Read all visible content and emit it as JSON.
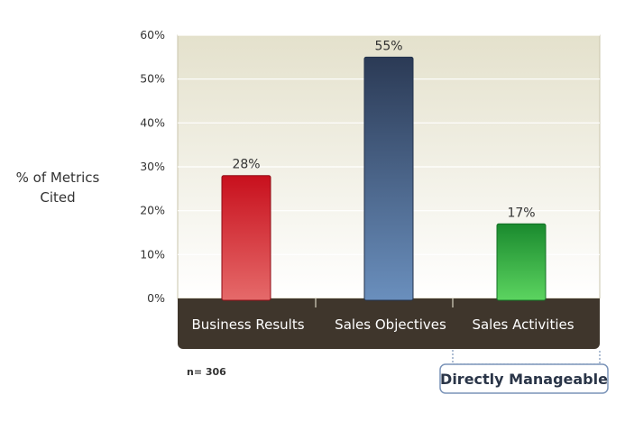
{
  "chart_data": {
    "type": "bar",
    "categories": [
      "Business Results",
      "Sales Objectives",
      "Sales Activities"
    ],
    "values": [
      28,
      55,
      17
    ],
    "value_labels": [
      "28%",
      "55%",
      "17%"
    ],
    "ylabel_lines": [
      "% of Metrics",
      "Cited"
    ],
    "ylim": [
      0,
      60
    ],
    "yticks": [
      0,
      10,
      20,
      30,
      40,
      50,
      60
    ],
    "ytick_labels": [
      "0%",
      "10%",
      "20%",
      "30%",
      "40%",
      "50%",
      "60%"
    ],
    "grid": true,
    "colors": [
      "#d01e2a",
      "#3d5a80",
      "#22a23b"
    ],
    "note": "n= 306",
    "callout": "Directly Manageable"
  }
}
